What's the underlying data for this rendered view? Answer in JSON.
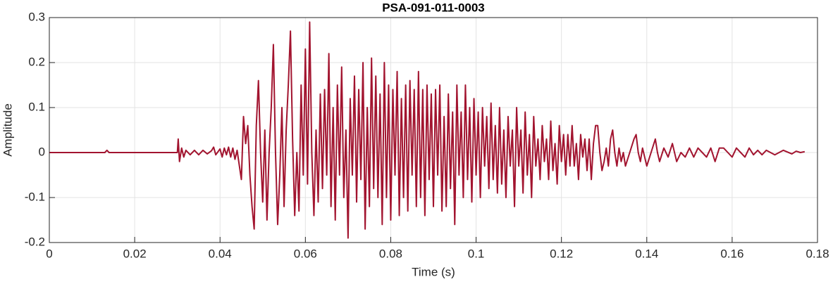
{
  "chart_data": {
    "type": "line",
    "title": "PSA-091-011-0003",
    "x_label": "Time (s)",
    "y_label": "Amplitude",
    "xlim": [
      0,
      0.18
    ],
    "ylim": [
      -0.2,
      0.3
    ],
    "xticks": [
      0,
      0.02,
      0.04,
      0.06,
      0.08,
      0.1,
      0.12,
      0.14,
      0.16,
      0.18
    ],
    "yticks": [
      -0.2,
      -0.1,
      0,
      0.1,
      0.2,
      0.3
    ],
    "grid": true,
    "x": [
      0,
      0.013,
      0.0135,
      0.014,
      0.03,
      0.0302,
      0.0305,
      0.031,
      0.0315,
      0.032,
      0.033,
      0.034,
      0.035,
      0.036,
      0.037,
      0.038,
      0.0385,
      0.039,
      0.04,
      0.0405,
      0.041,
      0.0415,
      0.042,
      0.0425,
      0.043,
      0.0435,
      0.044,
      0.045,
      0.0455,
      0.046,
      0.0465,
      0.047,
      0.0475,
      0.048,
      0.0485,
      0.049,
      0.0495,
      0.05,
      0.0505,
      0.051,
      0.0515,
      0.052,
      0.0525,
      0.053,
      0.0535,
      0.054,
      0.0545,
      0.055,
      0.0555,
      0.056,
      0.0565,
      0.057,
      0.0575,
      0.058,
      0.0585,
      0.059,
      0.0595,
      0.06,
      0.0605,
      0.061,
      0.0615,
      0.062,
      0.0625,
      0.063,
      0.0635,
      0.064,
      0.0645,
      0.065,
      0.0655,
      0.066,
      0.0665,
      0.067,
      0.0675,
      0.068,
      0.0685,
      0.069,
      0.0695,
      0.07,
      0.0705,
      0.071,
      0.0715,
      0.072,
      0.0725,
      0.073,
      0.0735,
      0.074,
      0.0745,
      0.075,
      0.0755,
      0.076,
      0.0765,
      0.077,
      0.0775,
      0.078,
      0.0785,
      0.079,
      0.0795,
      0.08,
      0.0805,
      0.081,
      0.0815,
      0.082,
      0.0825,
      0.083,
      0.0835,
      0.084,
      0.0845,
      0.085,
      0.0855,
      0.086,
      0.0865,
      0.087,
      0.0875,
      0.088,
      0.0885,
      0.089,
      0.0895,
      0.09,
      0.0905,
      0.091,
      0.0915,
      0.092,
      0.0925,
      0.093,
      0.0935,
      0.094,
      0.0945,
      0.095,
      0.0955,
      0.096,
      0.0965,
      0.097,
      0.0975,
      0.098,
      0.0985,
      0.099,
      0.0995,
      0.1,
      0.1005,
      0.101,
      0.1015,
      0.102,
      0.1025,
      0.103,
      0.1035,
      0.104,
      0.1045,
      0.105,
      0.1055,
      0.106,
      0.1065,
      0.107,
      0.1075,
      0.108,
      0.1085,
      0.109,
      0.1095,
      0.11,
      0.1105,
      0.111,
      0.1115,
      0.112,
      0.1125,
      0.113,
      0.1135,
      0.114,
      0.1145,
      0.115,
      0.1155,
      0.116,
      0.1165,
      0.117,
      0.1175,
      0.118,
      0.1185,
      0.119,
      0.1195,
      0.12,
      0.1205,
      0.121,
      0.1215,
      0.122,
      0.1225,
      0.123,
      0.1235,
      0.124,
      0.1245,
      0.125,
      0.1255,
      0.126,
      0.1265,
      0.127,
      0.1275,
      0.128,
      0.1285,
      0.129,
      0.1295,
      0.13,
      0.1305,
      0.131,
      0.1315,
      0.132,
      0.1325,
      0.133,
      0.1335,
      0.134,
      0.1345,
      0.135,
      0.136,
      0.137,
      0.1375,
      0.138,
      0.1385,
      0.139,
      0.14,
      0.141,
      0.142,
      0.1425,
      0.143,
      0.144,
      0.145,
      0.146,
      0.147,
      0.148,
      0.149,
      0.15,
      0.151,
      0.152,
      0.153,
      0.154,
      0.155,
      0.156,
      0.157,
      0.158,
      0.159,
      0.16,
      0.161,
      0.162,
      0.163,
      0.164,
      0.165,
      0.166,
      0.167,
      0.168,
      0.17,
      0.172,
      0.174,
      0.175,
      0.176,
      0.177
    ],
    "series": [
      {
        "color": "#a2142f",
        "values": [
          0,
          0,
          0.005,
          0,
          0,
          0.03,
          -0.02,
          0.01,
          -0.01,
          0.005,
          -0.005,
          0.005,
          -0.005,
          0.005,
          -0.003,
          0.004,
          0.012,
          -0.005,
          0.008,
          -0.01,
          0.01,
          -0.005,
          0.012,
          -0.01,
          0.01,
          -0.015,
          0.005,
          -0.06,
          0.08,
          0.02,
          0.06,
          -0.05,
          -0.12,
          -0.17,
          0.06,
          0.16,
          0,
          -0.11,
          0.05,
          -0.15,
          0,
          0.1,
          0.24,
          0,
          -0.16,
          -0.05,
          0.1,
          -0.12,
          0.05,
          0.15,
          0.27,
          0.03,
          -0.14,
          0,
          -0.13,
          0.15,
          -0.05,
          0.23,
          -0.07,
          0.29,
          0,
          -0.14,
          0.05,
          -0.11,
          0.13,
          -0.08,
          0.14,
          -0.05,
          0.22,
          -0.12,
          0.1,
          -0.15,
          0.15,
          -0.05,
          0.19,
          -0.1,
          0.05,
          -0.19,
          0.12,
          -0.05,
          0.17,
          -0.11,
          0.14,
          -0.06,
          0.2,
          -0.17,
          0.1,
          -0.12,
          0.21,
          -0.08,
          0.17,
          -0.1,
          0.13,
          -0.16,
          0.2,
          -0.1,
          0.15,
          -0.15,
          0.14,
          -0.05,
          0.18,
          -0.14,
          0.12,
          -0.1,
          0.15,
          -0.13,
          0.16,
          -0.05,
          0.14,
          -0.12,
          0.18,
          -0.1,
          0.14,
          -0.14,
          0.15,
          -0.06,
          0.13,
          -0.12,
          0.14,
          -0.05,
          0.15,
          -0.13,
          0.08,
          -0.12,
          0.13,
          -0.08,
          0.09,
          -0.16,
          0.15,
          -0.05,
          0.09,
          -0.1,
          0.15,
          -0.06,
          0.1,
          -0.11,
          0.12,
          -0.05,
          0.09,
          -0.1,
          0.1,
          -0.03,
          0.08,
          -0.08,
          0.11,
          -0.06,
          0.06,
          -0.09,
          0.1,
          -0.07,
          0.05,
          -0.1,
          0.08,
          -0.03,
          0.05,
          -0.12,
          0.1,
          -0.03,
          0.05,
          -0.09,
          0.09,
          -0.05,
          0.04,
          -0.1,
          0.08,
          -0.03,
          0.03,
          -0.06,
          0.06,
          -0.02,
          0.03,
          -0.06,
          0.07,
          -0.04,
          0.02,
          -0.07,
          0.06,
          -0.02,
          0.04,
          -0.05,
          0.04,
          -0.03,
          0.06,
          -0.03,
          0.02,
          -0.06,
          0.04,
          -0.01,
          0.03,
          -0.04,
          0.03,
          -0.06,
          0.02,
          0.06,
          0.06,
          0,
          -0.04,
          -0.02,
          0.01,
          -0.03,
          0.03,
          0.05,
          0,
          -0.03,
          0.01,
          -0.02,
          0,
          -0.03,
          0,
          0.03,
          0.04,
          0,
          -0.02,
          0.01,
          -0.03,
          0,
          0.03,
          0,
          -0.02,
          0.01,
          -0.01,
          0.02,
          -0.02,
          0,
          -0.01,
          0.01,
          -0.01,
          0.01,
          0,
          -0.01,
          0.01,
          -0.02,
          0.01,
          0.01,
          0,
          -0.01,
          0.01,
          0,
          -0.01,
          0.01,
          -0.005,
          0.005,
          -0.005,
          0.005,
          -0.005,
          0.005,
          -0.003,
          0.003,
          0,
          0.002
        ]
      }
    ]
  }
}
